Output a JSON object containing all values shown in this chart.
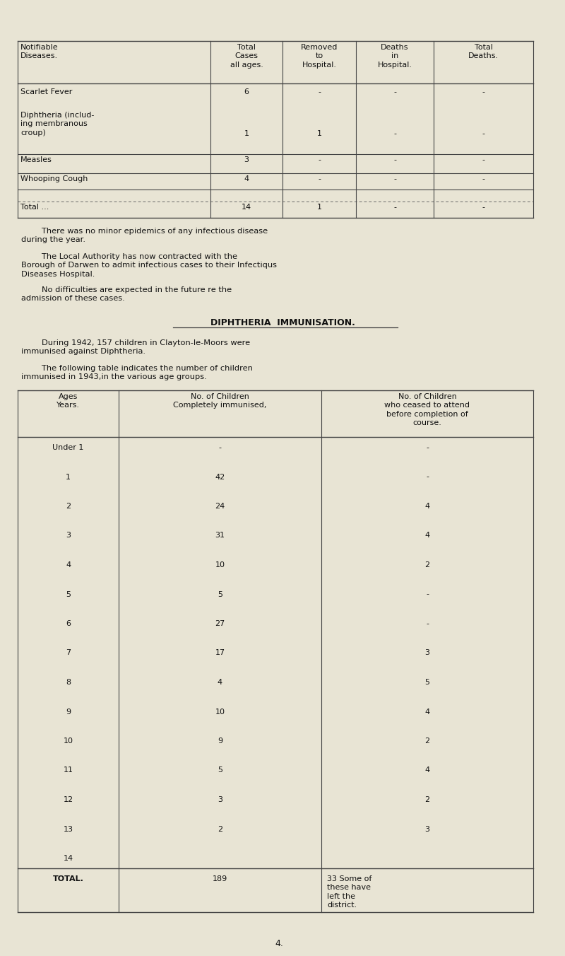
{
  "bg_color": "#e8e4d4",
  "text_color": "#1a1a1a",
  "page_number": "4.",
  "table1": {
    "headers": [
      "Notifiable\nDiseases.",
      "Total\nCases\nall ages.",
      "Removed\nto\nHospital.",
      "Deaths\nin\nHospital.",
      "Total\nDeaths."
    ],
    "rows": [
      [
        "Scarlet Fever",
        "6",
        "-",
        "-",
        "-"
      ],
      [
        "Diphtheria (includ-\ning membranous\ncroup)",
        "1",
        "1",
        "-",
        "-"
      ],
      [
        "Measles",
        "3",
        "-",
        "-",
        "-"
      ],
      [
        "Whooping Cough",
        "4",
        "-",
        "-",
        "-"
      ]
    ],
    "total_row": [
      "Total ...",
      "14",
      "1",
      "-",
      "-"
    ]
  },
  "paragraph1": "        There was no minor epidemics of any infectious disease\nduring the year.",
  "paragraph2": "        The Local Authority has now contracted with the\nBorough of Darwen to admit infectious cases to their Infectiqus\nDiseases Hospital.",
  "paragraph3": "        No difficulties are expected in the future re the\nadmission of these cases.",
  "section_title": "DIPHTHERIA  IMMUNISATION.",
  "paragraph4": "        During 1942, 157 children in Clayton-le-Moors were\nimmunised against Diphtheria.",
  "paragraph5": "        The following table indicates the number of children\nimmunised in 1943,in the various age groups.",
  "table2": {
    "headers": [
      "Ages\nYears.",
      "No. of Children\nCompletely immunised,",
      "No. of Children\nwho ceased to attend\nbefore completion of\ncourse."
    ],
    "ages": [
      "Under 1",
      "1",
      "2",
      "3",
      "4",
      "5",
      "6",
      "7",
      "8",
      "9",
      "10",
      "11",
      "12",
      "13",
      "14"
    ],
    "col2": [
      "-",
      "42",
      "24",
      "31",
      "10",
      "5",
      "27",
      "17",
      "4",
      "10",
      "9",
      "5",
      "3",
      "2",
      ""
    ],
    "col3": [
      "-",
      "-",
      "4",
      "4",
      "2",
      "-",
      "-",
      "3",
      "5",
      "4",
      "2",
      "4",
      "2",
      "3",
      ""
    ],
    "total_col2": "189",
    "total_col3": "33 Some of\nthese have\nleft the\ndistrict."
  }
}
